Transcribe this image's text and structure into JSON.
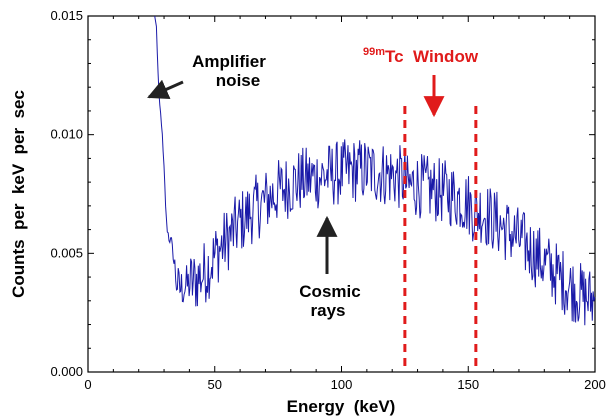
{
  "chart_data": {
    "type": "line",
    "title": "",
    "xlabel": "Energy  (keV)",
    "ylabel": "Counts  per  keV  per  sec",
    "xlim": [
      0,
      200
    ],
    "ylim": [
      0.0,
      0.015
    ],
    "x_ticks": [
      "0",
      "50",
      "100",
      "150",
      "200"
    ],
    "y_ticks": [
      "0.000",
      "0.005",
      "0.010",
      "0.015"
    ],
    "grid": false,
    "colors": {
      "series": "#1a1aa8",
      "window": "#e01b1b",
      "annotation": "#222222"
    },
    "series": [
      {
        "x": [
          27,
          28,
          29,
          30,
          31,
          32,
          33,
          34,
          35,
          36,
          38,
          40,
          42,
          44,
          46,
          48,
          50,
          52,
          55,
          58,
          60,
          63,
          66,
          70,
          75,
          80,
          85,
          90,
          95,
          100,
          105,
          110,
          115,
          120,
          125,
          126,
          130,
          135,
          140,
          145,
          150,
          153,
          155,
          160,
          165,
          170,
          175,
          180,
          185,
          190,
          195,
          200
        ],
        "y": [
          0.0145,
          0.0115,
          0.0105,
          0.0085,
          0.0062,
          0.0056,
          0.0055,
          0.0045,
          0.0038,
          0.0035,
          0.0036,
          0.0037,
          0.0038,
          0.004,
          0.0042,
          0.0045,
          0.0049,
          0.0052,
          0.0056,
          0.006,
          0.0063,
          0.0066,
          0.0069,
          0.0072,
          0.0076,
          0.0079,
          0.0081,
          0.0082,
          0.0083,
          0.0084,
          0.0085,
          0.0085,
          0.0084,
          0.0083,
          0.0081,
          0.0078,
          0.0079,
          0.0077,
          0.0076,
          0.0074,
          0.0071,
          0.0067,
          0.0068,
          0.0064,
          0.006,
          0.0056,
          0.0051,
          0.0046,
          0.0041,
          0.0036,
          0.0032,
          0.003
        ]
      }
    ],
    "window_lines_x": [
      125,
      153
    ],
    "annotations": {
      "amplifier_line1": "Amplifier",
      "amplifier_line2": "noise",
      "cosmic_line1": "Cosmic",
      "cosmic_line2": "rays",
      "window_super": "99m",
      "window_main": "Tc  Window"
    }
  }
}
